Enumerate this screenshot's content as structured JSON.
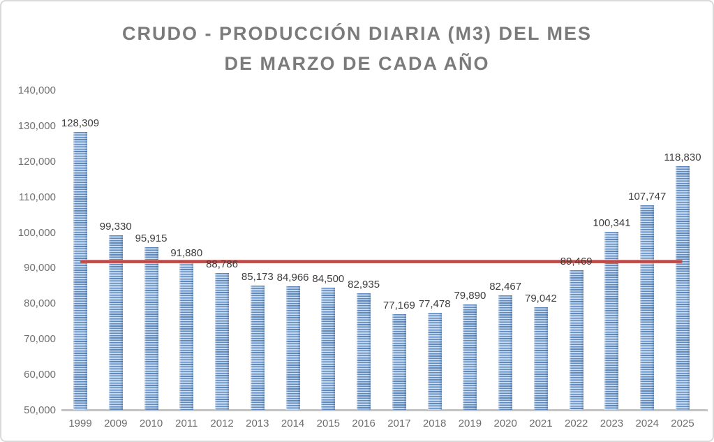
{
  "chart_data": {
    "type": "bar",
    "title": "CRUDO - PRODUCCIÓN DIARIA (M3) DEL MES DE MARZO DE CADA AÑO",
    "title_lines": [
      "CRUDO - PRODUCCIÓN DIARIA (M3) DEL MES",
      "DE MARZO DE CADA AÑO"
    ],
    "categories": [
      "1999",
      "2009",
      "2010",
      "2011",
      "2012",
      "2013",
      "2014",
      "2015",
      "2016",
      "2017",
      "2018",
      "2019",
      "2020",
      "2021",
      "2022",
      "2023",
      "2024",
      "2025"
    ],
    "values": [
      128309,
      99330,
      95915,
      91880,
      88786,
      85173,
      84966,
      84500,
      82935,
      77169,
      77478,
      79890,
      82467,
      79042,
      89469,
      100341,
      107747,
      118830
    ],
    "data_labels": [
      "128,309",
      "99,330",
      "95,915",
      "91,880",
      "88,786",
      "85,173",
      "84,966",
      "84,500",
      "82,935",
      "77,169",
      "77,478",
      "79,890",
      "82,467",
      "79,042",
      "89,469",
      "100,341",
      "107,747",
      "118,830"
    ],
    "xlabel": "",
    "ylabel": "",
    "ylim": [
      50000,
      140000
    ],
    "ytick_step": 10000,
    "y_tick_labels": [
      "140,000",
      "130,000",
      "120,000",
      "110,000",
      "100,000",
      "90,000",
      "80,000",
      "70,000",
      "60,000",
      "50,000"
    ],
    "grid": false,
    "legend": "none",
    "reference_line": {
      "value": 91901,
      "color": "#C0504D"
    },
    "colors": {
      "bar_stripe_dark": "#5D89BF",
      "bar_stripe_light": "#C6D9EE",
      "reference_line": "#C0504D",
      "title_text": "#7B7B7B",
      "axis_text": "#707070",
      "data_label_text": "#3E3E3E",
      "axis_line": "#C3C3C3"
    }
  }
}
